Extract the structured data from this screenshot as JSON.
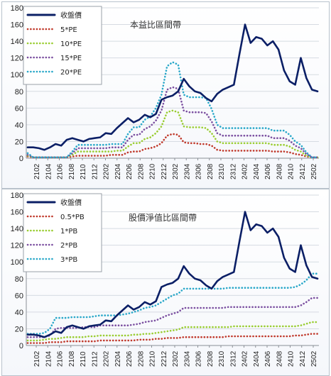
{
  "chart_data": [
    {
      "type": "line",
      "title": "本益比區間帶",
      "xlabel": "",
      "ylabel": "",
      "ylim": [
        0,
        180
      ],
      "yticks": [
        0,
        20,
        40,
        60,
        80,
        100,
        120,
        140,
        160,
        180
      ],
      "xticks": [
        "2102",
        "2104",
        "2106",
        "2108",
        "2110",
        "2112",
        "2202",
        "2204",
        "2206",
        "2208",
        "2210",
        "2212",
        "2302",
        "2304",
        "2306",
        "2308",
        "2310",
        "2312",
        "2402",
        "2404",
        "2406",
        "2408",
        "2410",
        "2412",
        "2502"
      ],
      "legend_position": "top-left",
      "grid": true,
      "series": [
        {
          "name": "收盤價",
          "color": "#0b1f66",
          "style": "solid",
          "values": [
            13,
            13,
            12,
            10,
            13,
            17,
            15,
            22,
            24,
            22,
            20,
            23,
            24,
            25,
            30,
            29,
            36,
            42,
            48,
            43,
            46,
            52,
            49,
            53,
            70,
            73,
            75,
            80,
            95,
            86,
            80,
            78,
            72,
            68,
            77,
            82,
            85,
            88,
            125,
            160,
            138,
            145,
            143,
            135,
            140,
            130,
            105,
            92,
            88,
            120,
            96,
            82,
            80
          ]
        },
        {
          "name": "5*PE",
          "color": "#c0392b",
          "style": "dotted",
          "values": [
            2,
            1,
            1,
            1,
            1,
            1,
            1,
            1,
            2,
            3,
            3,
            3,
            3,
            3,
            3,
            4,
            4,
            4,
            7,
            8,
            8,
            11,
            12,
            14,
            18,
            27,
            29,
            28,
            19,
            18,
            18,
            17,
            17,
            15,
            10,
            9,
            9,
            9,
            9,
            9,
            9,
            9,
            9,
            9,
            8,
            8,
            8,
            7,
            5,
            4,
            2,
            1,
            1
          ]
        },
        {
          "name": "10*PE",
          "color": "#9acd32",
          "style": "dotted",
          "values": [
            3,
            1,
            1,
            1,
            1,
            1,
            1,
            1,
            4,
            8,
            8,
            8,
            8,
            8,
            8,
            8,
            9,
            9,
            14,
            18,
            18,
            23,
            25,
            30,
            38,
            55,
            57,
            55,
            38,
            37,
            37,
            37,
            36,
            30,
            20,
            18,
            18,
            18,
            18,
            18,
            18,
            18,
            18,
            18,
            16,
            16,
            16,
            14,
            10,
            8,
            3,
            1,
            1
          ]
        },
        {
          "name": "15*PE",
          "color": "#7b4fa0",
          "style": "dotted",
          "values": [
            4,
            1,
            1,
            1,
            1,
            1,
            1,
            1,
            6,
            12,
            12,
            12,
            12,
            12,
            12,
            13,
            13,
            13,
            22,
            28,
            28,
            35,
            38,
            45,
            57,
            82,
            85,
            83,
            57,
            55,
            55,
            55,
            54,
            44,
            30,
            27,
            27,
            27,
            27,
            27,
            27,
            27,
            27,
            27,
            24,
            24,
            24,
            21,
            15,
            12,
            5,
            1,
            1
          ]
        },
        {
          "name": "20*PE",
          "color": "#2aa8c9",
          "style": "dotted",
          "values": [
            6,
            1,
            1,
            1,
            1,
            1,
            1,
            1,
            8,
            16,
            16,
            16,
            16,
            16,
            16,
            17,
            17,
            17,
            29,
            37,
            37,
            46,
            50,
            60,
            76,
            110,
            115,
            112,
            76,
            73,
            73,
            73,
            72,
            59,
            40,
            36,
            36,
            36,
            36,
            36,
            36,
            36,
            36,
            36,
            33,
            33,
            33,
            28,
            20,
            16,
            7,
            1,
            1
          ]
        }
      ]
    },
    {
      "type": "line",
      "title": "股價淨值比區間帶",
      "xlabel": "",
      "ylabel": "",
      "ylim": [
        0,
        180
      ],
      "yticks": [
        0,
        20,
        40,
        60,
        80,
        100,
        120,
        140,
        160,
        180
      ],
      "xticks": [
        "2102",
        "2104",
        "2106",
        "2108",
        "2110",
        "2112",
        "2202",
        "2204",
        "2206",
        "2208",
        "2210",
        "2212",
        "2302",
        "2304",
        "2306",
        "2308",
        "2310",
        "2312",
        "2402",
        "2404",
        "2406",
        "2408",
        "2410",
        "2412",
        "2502"
      ],
      "legend_position": "top-left",
      "grid": true,
      "series": [
        {
          "name": "收盤價",
          "color": "#0b1f66",
          "style": "solid",
          "values": [
            13,
            13,
            12,
            10,
            13,
            17,
            15,
            22,
            24,
            22,
            20,
            23,
            24,
            25,
            30,
            29,
            36,
            42,
            48,
            43,
            46,
            52,
            49,
            53,
            70,
            73,
            75,
            80,
            95,
            86,
            80,
            78,
            72,
            68,
            77,
            82,
            85,
            88,
            125,
            160,
            138,
            145,
            143,
            135,
            140,
            130,
            105,
            92,
            88,
            120,
            96,
            82,
            80
          ]
        },
        {
          "name": "0.5*PB",
          "color": "#c0392b",
          "style": "dotted",
          "values": [
            3,
            3,
            3,
            3,
            4,
            4,
            4,
            5,
            5,
            5,
            5,
            5,
            5,
            6,
            6,
            6,
            6,
            6,
            6,
            6,
            7,
            7,
            7,
            8,
            8,
            9,
            9,
            9,
            10,
            10,
            10,
            10,
            10,
            10,
            10,
            10,
            11,
            11,
            11,
            11,
            11,
            11,
            11,
            11,
            11,
            11,
            11,
            11,
            12,
            12,
            13,
            14,
            14
          ]
        },
        {
          "name": "1*PB",
          "color": "#9acd32",
          "style": "dotted",
          "values": [
            6,
            6,
            6,
            7,
            8,
            8,
            9,
            10,
            10,
            10,
            10,
            11,
            11,
            12,
            12,
            12,
            12,
            12,
            12,
            13,
            13,
            14,
            14,
            15,
            16,
            17,
            18,
            19,
            22,
            22,
            22,
            22,
            22,
            22,
            22,
            22,
            22,
            23,
            23,
            23,
            23,
            23,
            23,
            23,
            23,
            23,
            23,
            23,
            23,
            24,
            26,
            28,
            28
          ]
        },
        {
          "name": "2*PB",
          "color": "#7b4fa0",
          "style": "dotted",
          "values": [
            10,
            10,
            10,
            10,
            12,
            20,
            21,
            21,
            21,
            21,
            22,
            22,
            22,
            24,
            24,
            24,
            24,
            24,
            24,
            25,
            26,
            28,
            29,
            30,
            33,
            36,
            38,
            40,
            45,
            45,
            45,
            45,
            45,
            45,
            45,
            45,
            46,
            46,
            46,
            46,
            46,
            46,
            46,
            46,
            46,
            46,
            46,
            46,
            46,
            48,
            52,
            57,
            57
          ]
        },
        {
          "name": "3*PB",
          "color": "#2aa8c9",
          "style": "dotted",
          "values": [
            14,
            14,
            14,
            15,
            20,
            33,
            33,
            33,
            34,
            34,
            34,
            34,
            35,
            36,
            36,
            36,
            36,
            37,
            38,
            40,
            42,
            45,
            46,
            48,
            52,
            56,
            60,
            62,
            68,
            68,
            68,
            68,
            68,
            68,
            68,
            68,
            69,
            69,
            69,
            69,
            69,
            69,
            69,
            69,
            69,
            69,
            69,
            69,
            70,
            73,
            78,
            86,
            86
          ]
        }
      ]
    }
  ]
}
